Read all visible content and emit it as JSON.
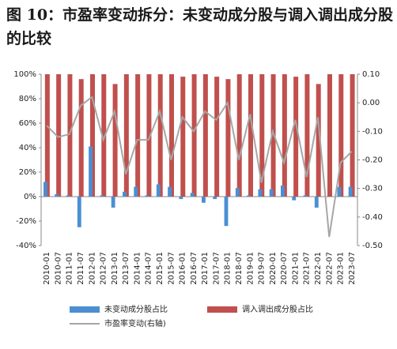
{
  "chart_data": {
    "type": "bar",
    "title": "图 10：市盈率变动拆分：未变动成分股与调入调出成分股的比较",
    "categories": [
      "2010-01",
      "2010-07",
      "2011-01",
      "2011-07",
      "2012-01",
      "2012-07",
      "2013-01",
      "2013-07",
      "2014-01",
      "2014-07",
      "2015-01",
      "2015-07",
      "2016-01",
      "2016-07",
      "2017-01",
      "2017-07",
      "2018-01",
      "2018-07",
      "2019-01",
      "2019-07",
      "2020-01",
      "2020-07",
      "2021-01",
      "2021-07",
      "2022-01",
      "2022-07",
      "2023-01",
      "2023-07"
    ],
    "series": [
      {
        "name": "未变动成分股占比",
        "color": "#4b8fd1",
        "values": [
          12,
          2,
          1,
          -25,
          41,
          1,
          -9,
          4,
          8,
          1,
          10,
          8,
          -2,
          3,
          -5,
          -2,
          -24,
          7,
          1,
          6,
          6,
          9,
          -3,
          1,
          -9,
          0,
          8,
          8
        ]
      },
      {
        "name": "调入调出成分股占比",
        "color": "#c0504d",
        "values": [
          100,
          100,
          100,
          96,
          100,
          100,
          92,
          100,
          100,
          100,
          100,
          100,
          98,
          100,
          100,
          98,
          96,
          100,
          100,
          100,
          100,
          100,
          98,
          100,
          92,
          100,
          100,
          100
        ]
      },
      {
        "name": "市盈率变动(右轴)",
        "color": "#a6a6a6",
        "axis": "y2",
        "values": [
          -0.08,
          -0.12,
          -0.11,
          -0.01,
          0.02,
          -0.13,
          -0.03,
          -0.25,
          -0.13,
          -0.13,
          -0.03,
          -0.2,
          -0.05,
          -0.1,
          -0.03,
          -0.06,
          0.0,
          -0.2,
          -0.04,
          -0.28,
          -0.1,
          -0.21,
          -0.06,
          -0.26,
          -0.05,
          -0.47,
          -0.21,
          -0.17
        ]
      }
    ],
    "ylim": [
      -40,
      100
    ],
    "yticks": [
      {
        "value": -40,
        "label": "-40%"
      },
      {
        "value": -20,
        "label": "-20%"
      },
      {
        "value": 0,
        "label": "0%"
      },
      {
        "value": 20,
        "label": "20%"
      },
      {
        "value": 40,
        "label": "40%"
      },
      {
        "value": 60,
        "label": "60%"
      },
      {
        "value": 80,
        "label": "80%"
      },
      {
        "value": 100,
        "label": "100%"
      }
    ],
    "y2lim": [
      -0.5,
      0.1
    ],
    "y2ticks": [
      {
        "value": -0.5,
        "label": "-0.50"
      },
      {
        "value": -0.4,
        "label": "-0.40"
      },
      {
        "value": -0.3,
        "label": "-0.30"
      },
      {
        "value": -0.2,
        "label": "-0.20"
      },
      {
        "value": -0.1,
        "label": "-0.10"
      },
      {
        "value": 0,
        "label": "0.00"
      },
      {
        "value": 0.1,
        "label": "0.10"
      }
    ],
    "grid": false
  }
}
